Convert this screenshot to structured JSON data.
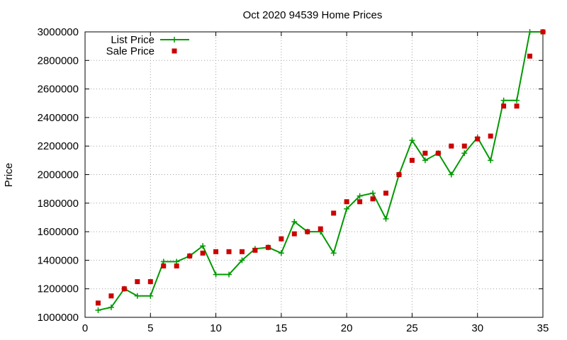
{
  "chart_data": {
    "type": "line",
    "title": "Oct 2020 94539 Home Prices",
    "xlabel": "",
    "ylabel": "Price",
    "xlim": [
      0,
      35
    ],
    "ylim": [
      1000000,
      3000000
    ],
    "xticks": [
      0,
      5,
      10,
      15,
      20,
      25,
      30,
      35
    ],
    "yticks": [
      1000000,
      1200000,
      1400000,
      1600000,
      1800000,
      2000000,
      2200000,
      2400000,
      2600000,
      2800000,
      3000000
    ],
    "grid": true,
    "legend_position": "top-left",
    "x": [
      1,
      2,
      3,
      4,
      5,
      6,
      7,
      8,
      9,
      10,
      11,
      12,
      13,
      14,
      15,
      16,
      17,
      18,
      19,
      20,
      21,
      22,
      23,
      24,
      25,
      26,
      27,
      28,
      29,
      30,
      31,
      32,
      33,
      34,
      35
    ],
    "series": [
      {
        "name": "List Price",
        "style": "linespoints",
        "color": "#009900",
        "values": [
          1050000,
          1070000,
          1200000,
          1150000,
          1150000,
          1390000,
          1390000,
          1430000,
          1500000,
          1300000,
          1300000,
          1400000,
          1480000,
          1490000,
          1450000,
          1670000,
          1600000,
          1600000,
          1450000,
          1760000,
          1850000,
          1870000,
          1690000,
          2000000,
          2240000,
          2100000,
          2150000,
          2000000,
          2150000,
          2260000,
          2100000,
          2520000,
          2520000,
          3000000,
          3000000
        ]
      },
      {
        "name": "Sale Price",
        "style": "points",
        "color": "#cc0000",
        "values": [
          1100000,
          1150000,
          1200000,
          1250000,
          1250000,
          1360000,
          1360000,
          1430000,
          1450000,
          1460000,
          1460000,
          1460000,
          1470000,
          1490000,
          1550000,
          1585000,
          1600000,
          1620000,
          1730000,
          1810000,
          1810000,
          1830000,
          1870000,
          2000000,
          2100000,
          2150000,
          2150000,
          2200000,
          2200000,
          2250000,
          2270000,
          2480000,
          2480000,
          2830000,
          3000000
        ]
      }
    ]
  }
}
